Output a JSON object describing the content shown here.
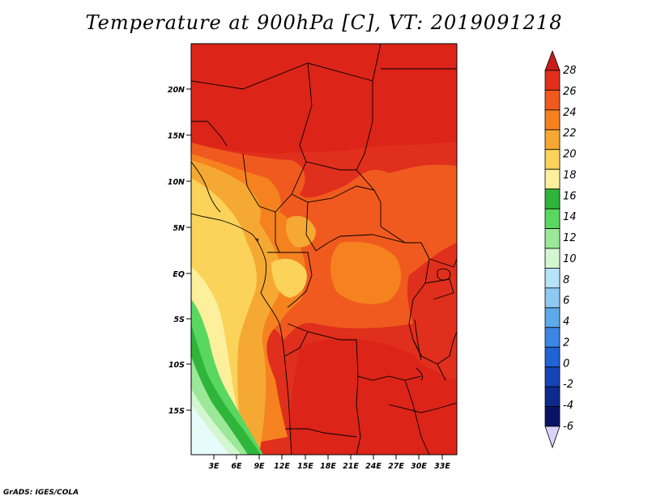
{
  "title": "Temperature at 900hPa [C], VT: 2019091218",
  "credit": "GrADS: IGES/COLA",
  "map": {
    "region": "Central and Southern-Central Africa",
    "lat_labels": [
      "20N",
      "15N",
      "10N",
      "5N",
      "EQ",
      "5S",
      "10S",
      "15S"
    ],
    "lon_labels": [
      "3E",
      "6E",
      "9E",
      "12E",
      "15E",
      "18E",
      "21E",
      "24E",
      "27E",
      "30E",
      "33E"
    ]
  },
  "colorbar": {
    "labels": [
      "28",
      "26",
      "24",
      "22",
      "20",
      "18",
      "16",
      "14",
      "12",
      "10",
      "8",
      "6",
      "4",
      "2",
      "0",
      "-2",
      "-4",
      "-6"
    ],
    "colors": [
      "#c81c1c",
      "#e02f1c",
      "#f05a1e",
      "#f5821e",
      "#f5a932",
      "#fbd25a",
      "#fcf09c",
      "#2fb53a",
      "#5ad760",
      "#9ae898",
      "#d3f7d1",
      "#b6e3f8",
      "#8dc9f2",
      "#5ea9ea",
      "#3b85e3",
      "#2063d5",
      "#1545b4",
      "#0c2a8e",
      "#0a1466"
    ],
    "top_color": "#c81c1c",
    "bottom_color": "#d9d4f7"
  }
}
